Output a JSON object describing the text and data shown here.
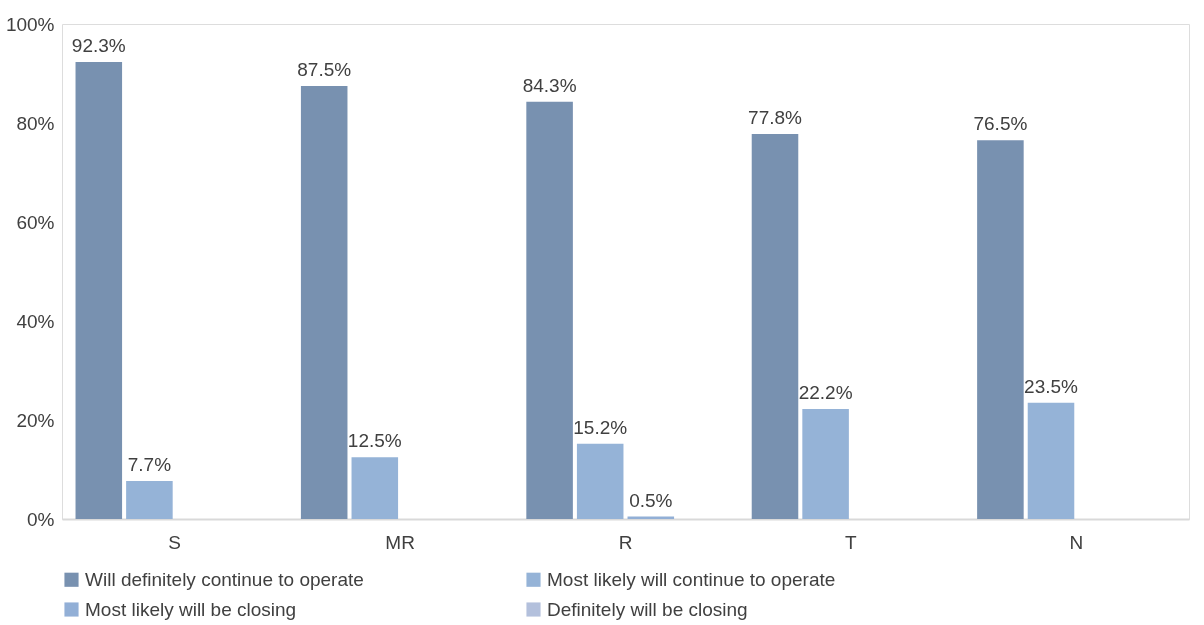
{
  "chart_data": {
    "type": "bar",
    "categories": [
      "S",
      "MR",
      "R",
      "T",
      "N"
    ],
    "series": [
      {
        "name": "Will definitely continue to operate",
        "color": "#7891b0",
        "values": [
          92.3,
          87.5,
          84.3,
          77.8,
          76.5
        ],
        "value_labels": [
          "92.3%",
          "87.5%",
          "84.3%",
          "77.8%",
          "76.5%"
        ]
      },
      {
        "name": "Most likely will continue to operate",
        "color": "#95b3d7",
        "values": [
          7.7,
          12.5,
          15.2,
          22.2,
          23.5
        ],
        "value_labels": [
          "7.7%",
          "12.5%",
          "15.2%",
          "22.2%",
          "23.5%"
        ]
      },
      {
        "name": "Most likely will be closing",
        "color": "#92afd6",
        "values": [
          0,
          0,
          0.5,
          0,
          0
        ],
        "value_labels": [
          null,
          null,
          "0.5%",
          null,
          null
        ]
      },
      {
        "name": "Definitely will be closing",
        "color": "#b3c0dc",
        "values": [
          0,
          0,
          0,
          0,
          0
        ],
        "value_labels": [
          null,
          null,
          null,
          null,
          null
        ]
      }
    ],
    "ylim": [
      0,
      100
    ],
    "yticks": [
      {
        "value": 0,
        "label": "0%"
      },
      {
        "value": 20,
        "label": "20%"
      },
      {
        "value": 40,
        "label": "40%"
      },
      {
        "value": 60,
        "label": "60%"
      },
      {
        "value": 80,
        "label": "80%"
      },
      {
        "value": 100,
        "label": "100%"
      }
    ],
    "grid": false,
    "legend": "bottom"
  }
}
